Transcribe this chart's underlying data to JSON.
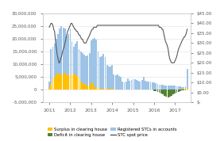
{
  "title": "",
  "xlim": [
    2011,
    2017.75
  ],
  "ylim_left": [
    -5000000,
    30000000
  ],
  "ylim_right": [
    0,
    45
  ],
  "xticks": [
    2011,
    2012,
    2013,
    2014,
    2015,
    2016,
    2017
  ],
  "yticks_left": [
    -5000000,
    0,
    5000000,
    10000000,
    15000000,
    20000000,
    25000000,
    30000000
  ],
  "yticks_right": [
    0,
    5,
    10,
    15,
    20,
    25,
    30,
    35,
    40,
    45
  ],
  "ytick_labels_left": [
    "-5,000,000",
    "0",
    "5,000,000",
    "10,000,000",
    "15,000,000",
    "20,000,000",
    "25,000,000",
    "30,000,000"
  ],
  "ytick_labels_right": [
    "$-",
    "$5.00",
    "$10.00",
    "$15.00",
    "$20.00",
    "$25.00",
    "$30.00",
    "$35.00",
    "$40.00",
    "$45.00"
  ],
  "surplus_color": "#FFC000",
  "deficit_color": "#548235",
  "registered_color": "#9DC3E6",
  "price_color": "#595959",
  "legend_items": [
    "Surplus in clearing house",
    "Deficit in clearing house",
    "Registered STCs in accounts",
    "STC spot price"
  ],
  "bar_x": [
    2011.0,
    2011.08,
    2011.17,
    2011.25,
    2011.33,
    2011.42,
    2011.5,
    2011.58,
    2011.67,
    2011.75,
    2011.83,
    2011.92,
    2012.0,
    2012.08,
    2012.17,
    2012.25,
    2012.33,
    2012.42,
    2012.5,
    2012.58,
    2012.67,
    2012.75,
    2012.83,
    2012.92,
    2013.0,
    2013.08,
    2013.17,
    2013.25,
    2013.33,
    2013.42,
    2013.5,
    2013.58,
    2013.67,
    2013.75,
    2013.83,
    2013.92,
    2014.0,
    2014.08,
    2014.17,
    2014.25,
    2014.33,
    2014.42,
    2014.5,
    2014.58,
    2014.67,
    2014.75,
    2014.83,
    2014.92,
    2015.0,
    2015.08,
    2015.17,
    2015.25,
    2015.33,
    2015.42,
    2015.5,
    2015.58,
    2015.67,
    2015.75,
    2015.83,
    2015.92,
    2016.0,
    2016.08,
    2016.17,
    2016.25,
    2016.33,
    2016.42,
    2016.5,
    2016.58,
    2016.67,
    2016.75,
    2016.83,
    2016.92,
    2017.0,
    2017.08,
    2017.17,
    2017.25,
    2017.33,
    2017.42,
    2017.5,
    2017.58
  ],
  "surplus_vals": [
    500000,
    2500000,
    4500000,
    5000000,
    6000000,
    6500000,
    6000000,
    6000000,
    6200000,
    6500000,
    5500000,
    5800000,
    6200000,
    6000000,
    5800000,
    5800000,
    5200000,
    4800000,
    3000000,
    2500000,
    2200000,
    1800000,
    1500000,
    1500000,
    2800000,
    2500000,
    1000000,
    800000,
    600000,
    600000,
    450000,
    350000,
    300000,
    300000,
    280000,
    200000,
    200000,
    200000,
    150000,
    150000,
    150000,
    120000,
    100000,
    100000,
    100000,
    100000,
    80000,
    80000,
    0,
    0,
    0,
    0,
    0,
    0,
    0,
    0,
    0,
    0,
    0,
    0,
    0,
    0,
    0,
    0,
    0,
    0,
    0,
    0,
    0,
    0,
    0,
    0,
    0,
    0,
    0,
    0,
    0,
    300000,
    500000,
    700000
  ],
  "deficit_vals": [
    0,
    0,
    0,
    0,
    0,
    0,
    0,
    0,
    0,
    0,
    0,
    0,
    0,
    0,
    0,
    0,
    0,
    0,
    0,
    0,
    0,
    0,
    0,
    0,
    0,
    0,
    0,
    0,
    0,
    0,
    0,
    0,
    0,
    0,
    0,
    0,
    0,
    0,
    0,
    0,
    0,
    0,
    0,
    0,
    0,
    0,
    0,
    0,
    0,
    0,
    0,
    0,
    0,
    0,
    0,
    0,
    0,
    0,
    0,
    0,
    -500000,
    -600000,
    -900000,
    -1200000,
    -1500000,
    -2000000,
    -2500000,
    -2800000,
    -3000000,
    -2800000,
    -2500000,
    -2000000,
    -1500000,
    -1200000,
    -900000,
    -600000,
    -400000,
    -300000,
    -200000,
    -150000
  ],
  "registered_vals": [
    3000000,
    16000000,
    17000000,
    18000000,
    20000000,
    22000000,
    24000000,
    25000000,
    24500000,
    24000000,
    21000000,
    22000000,
    24000000,
    19000000,
    17000000,
    18000000,
    19000000,
    16000000,
    15000000,
    14500000,
    13800000,
    13200000,
    13500000,
    14500000,
    19500000,
    20000000,
    20200000,
    19800000,
    15000000,
    12800000,
    13200000,
    14000000,
    12700000,
    9700000,
    9000000,
    9200000,
    9600000,
    6000000,
    5500000,
    5800000,
    5200000,
    5000000,
    3000000,
    2800000,
    3000000,
    4500000,
    3500000,
    3600000,
    4000000,
    4200000,
    3900000,
    3500000,
    3200000,
    3600000,
    5000000,
    3500000,
    3000000,
    3200000,
    3000000,
    2800000,
    2800000,
    2500000,
    2200000,
    2000000,
    1800000,
    1800000,
    1700000,
    1700000,
    1600000,
    1600000,
    1600000,
    1500000,
    1500000,
    1400000,
    1300000,
    1200000,
    1000000,
    900000,
    1200000,
    8000000
  ],
  "price_t": [
    2011.0,
    2011.04,
    2011.08,
    2011.12,
    2011.17,
    2011.21,
    2011.25,
    2011.29,
    2011.33,
    2011.38,
    2011.42,
    2011.46,
    2011.5,
    2011.54,
    2011.58,
    2011.62,
    2011.67,
    2011.71,
    2011.75,
    2011.79,
    2011.83,
    2011.88,
    2011.92,
    2011.96,
    2012.0,
    2012.04,
    2012.08,
    2012.12,
    2012.17,
    2012.21,
    2012.25,
    2012.29,
    2012.33,
    2012.38,
    2012.42,
    2012.46,
    2012.5,
    2012.54,
    2012.58,
    2012.62,
    2012.67,
    2012.71,
    2012.75,
    2012.79,
    2012.83,
    2012.88,
    2012.92,
    2012.96,
    2013.0,
    2013.04,
    2013.08,
    2013.12,
    2013.17,
    2013.21,
    2013.25,
    2013.29,
    2013.33,
    2013.38,
    2013.42,
    2013.46,
    2013.5,
    2013.54,
    2013.58,
    2013.62,
    2013.67,
    2013.71,
    2013.75,
    2013.79,
    2013.83,
    2013.88,
    2013.92,
    2013.96,
    2014.0,
    2014.04,
    2014.08,
    2014.12,
    2014.17,
    2014.21,
    2014.25,
    2014.29,
    2014.33,
    2014.38,
    2014.42,
    2014.46,
    2014.5,
    2014.54,
    2014.58,
    2014.62,
    2014.67,
    2014.71,
    2014.75,
    2014.79,
    2014.83,
    2014.88,
    2014.92,
    2014.96,
    2015.0,
    2015.04,
    2015.08,
    2015.12,
    2015.17,
    2015.21,
    2015.25,
    2015.29,
    2015.33,
    2015.38,
    2015.42,
    2015.46,
    2015.5,
    2015.54,
    2015.58,
    2015.62,
    2015.67,
    2015.71,
    2015.75,
    2015.79,
    2015.83,
    2015.88,
    2015.92,
    2015.96,
    2016.0,
    2016.04,
    2016.08,
    2016.12,
    2016.17,
    2016.21,
    2016.25,
    2016.29,
    2016.33,
    2016.38,
    2016.42,
    2016.46,
    2016.5,
    2016.54,
    2016.58,
    2016.62,
    2016.67,
    2016.71,
    2016.75,
    2016.79,
    2016.83,
    2016.88,
    2016.92,
    2016.96,
    2017.0,
    2017.04,
    2017.08,
    2017.12,
    2017.17,
    2017.21,
    2017.25,
    2017.29,
    2017.33,
    2017.38,
    2017.42,
    2017.46,
    2017.5,
    2017.54,
    2017.58
  ],
  "price_vals": [
    38,
    39,
    40,
    40,
    39,
    37,
    36,
    32,
    28,
    24,
    22,
    20,
    20,
    22,
    23,
    25,
    27,
    28,
    30,
    32,
    34,
    36,
    37,
    38,
    39,
    40,
    40,
    39,
    38,
    37,
    37,
    36,
    36,
    35,
    34,
    34,
    33,
    32,
    32,
    31,
    30,
    30,
    30,
    31,
    32,
    33,
    34,
    35,
    36,
    37,
    37,
    38,
    38,
    38,
    38,
    39,
    39,
    39,
    39,
    39,
    39,
    39,
    39,
    39,
    39,
    39,
    39,
    39,
    39,
    39,
    39,
    39,
    39,
    39,
    39,
    39,
    39,
    39,
    39,
    39,
    39,
    39,
    39,
    39,
    39,
    39,
    39,
    39,
    39,
    39,
    39,
    39,
    39,
    39,
    39,
    39,
    39,
    39,
    39,
    39,
    39,
    39,
    39,
    39,
    39,
    39,
    39,
    39,
    39,
    39,
    39,
    39,
    39,
    39,
    39,
    39,
    39,
    39,
    39,
    39,
    39,
    39,
    39,
    39,
    39,
    39,
    38,
    38,
    38,
    37,
    37,
    35,
    33,
    31,
    30,
    29,
    27,
    24,
    22,
    21,
    20,
    20,
    20,
    20,
    21,
    22,
    23,
    25,
    27,
    28,
    29,
    30,
    31,
    32,
    33,
    33,
    34,
    35,
    37
  ]
}
